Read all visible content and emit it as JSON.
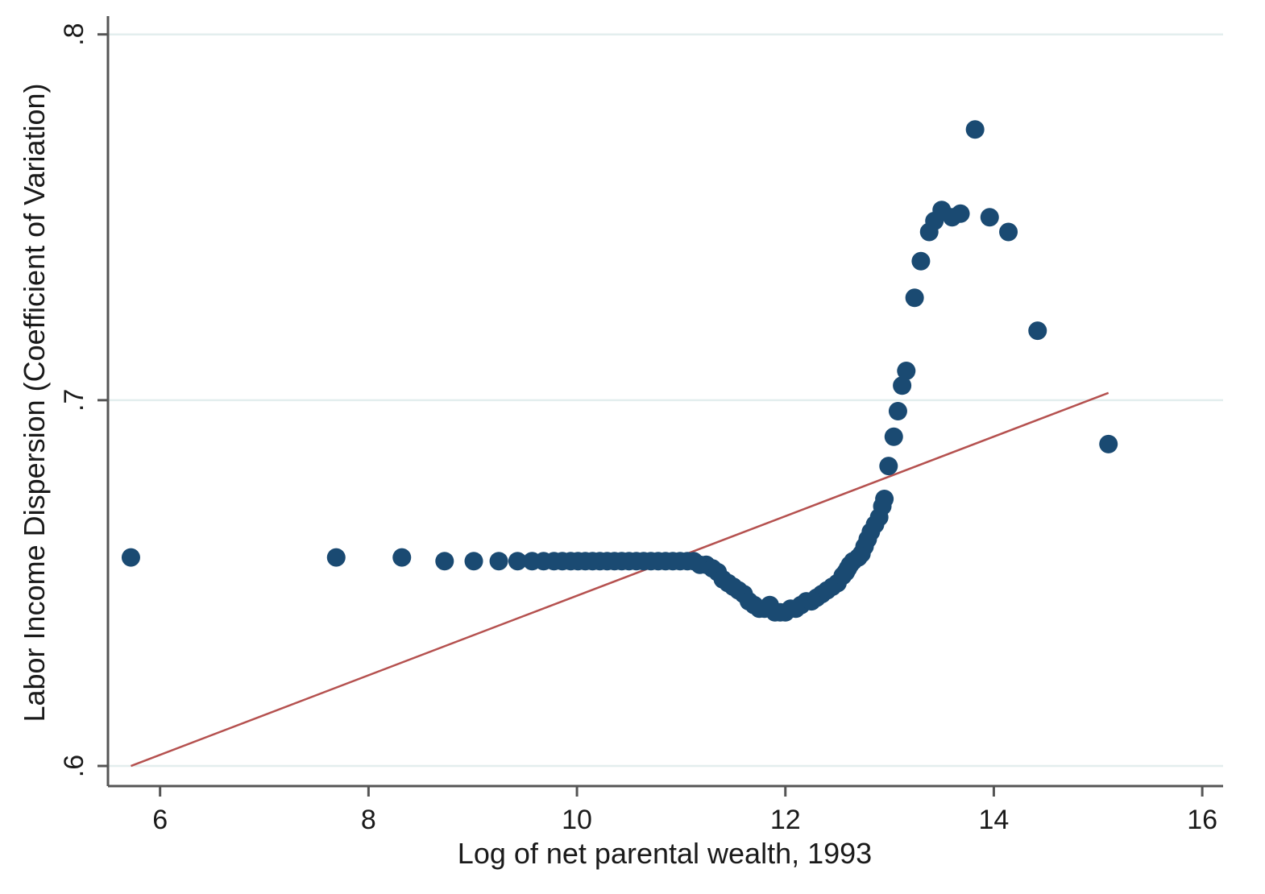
{
  "chart_data": {
    "type": "scatter",
    "xlabel": "Log of net parental wealth, 1993",
    "ylabel": "Labor Income Dispersion (Coefficient of Variation)",
    "xlim": [
      5.5,
      16.2
    ],
    "ylim": [
      0.5945,
      0.805
    ],
    "x_ticks": [
      6,
      8,
      10,
      12,
      14,
      16
    ],
    "x_tick_labels": [
      "6",
      "8",
      "10",
      "12",
      "14",
      "16"
    ],
    "y_ticks": [
      0.6,
      0.7,
      0.8
    ],
    "y_tick_labels": [
      ".6",
      ".7",
      ".8"
    ],
    "grid": "horizontal",
    "legend": "none",
    "colors": {
      "points": "#1a4a72",
      "fit_line": "#b5514f",
      "grid": "#e3eeee",
      "axis": "#555555"
    },
    "series": [
      {
        "kind": "points",
        "points": [
          [
            5.72,
            0.657
          ],
          [
            7.69,
            0.657
          ],
          [
            8.32,
            0.657
          ],
          [
            8.73,
            0.656
          ],
          [
            9.01,
            0.656
          ],
          [
            9.25,
            0.656
          ],
          [
            9.43,
            0.656
          ],
          [
            9.57,
            0.656
          ],
          [
            9.68,
            0.656
          ],
          [
            9.78,
            0.656
          ],
          [
            9.86,
            0.656
          ],
          [
            9.94,
            0.656
          ],
          [
            10.01,
            0.656
          ],
          [
            10.08,
            0.656
          ],
          [
            10.15,
            0.656
          ],
          [
            10.22,
            0.656
          ],
          [
            10.29,
            0.656
          ],
          [
            10.36,
            0.656
          ],
          [
            10.43,
            0.656
          ],
          [
            10.5,
            0.656
          ],
          [
            10.57,
            0.656
          ],
          [
            10.64,
            0.656
          ],
          [
            10.71,
            0.656
          ],
          [
            10.78,
            0.656
          ],
          [
            10.85,
            0.656
          ],
          [
            10.92,
            0.656
          ],
          [
            10.99,
            0.656
          ],
          [
            11.06,
            0.656
          ],
          [
            11.12,
            0.656
          ],
          [
            11.18,
            0.655
          ],
          [
            11.24,
            0.655
          ],
          [
            11.3,
            0.654
          ],
          [
            11.35,
            0.653
          ],
          [
            11.4,
            0.651
          ],
          [
            11.45,
            0.65
          ],
          [
            11.5,
            0.649
          ],
          [
            11.55,
            0.648
          ],
          [
            11.6,
            0.647
          ],
          [
            11.65,
            0.645
          ],
          [
            11.7,
            0.644
          ],
          [
            11.75,
            0.643
          ],
          [
            11.8,
            0.643
          ],
          [
            11.85,
            0.644
          ],
          [
            11.9,
            0.642
          ],
          [
            11.95,
            0.642
          ],
          [
            12.0,
            0.642
          ],
          [
            12.05,
            0.643
          ],
          [
            12.1,
            0.643
          ],
          [
            12.15,
            0.644
          ],
          [
            12.2,
            0.645
          ],
          [
            12.25,
            0.645
          ],
          [
            12.3,
            0.646
          ],
          [
            12.35,
            0.647
          ],
          [
            12.4,
            0.648
          ],
          [
            12.45,
            0.649
          ],
          [
            12.5,
            0.65
          ],
          [
            12.55,
            0.652
          ],
          [
            12.58,
            0.653
          ],
          [
            12.6,
            0.654
          ],
          [
            12.62,
            0.655
          ],
          [
            12.65,
            0.656
          ],
          [
            12.7,
            0.657
          ],
          [
            12.73,
            0.658
          ],
          [
            12.76,
            0.66
          ],
          [
            12.79,
            0.662
          ],
          [
            12.82,
            0.664
          ],
          [
            12.86,
            0.666
          ],
          [
            12.9,
            0.668
          ],
          [
            12.93,
            0.671
          ],
          [
            12.95,
            0.673
          ],
          [
            12.99,
            0.682
          ],
          [
            13.04,
            0.69
          ],
          [
            13.08,
            0.697
          ],
          [
            13.12,
            0.704
          ],
          [
            13.16,
            0.708
          ],
          [
            13.24,
            0.728
          ],
          [
            13.3,
            0.738
          ],
          [
            13.38,
            0.746
          ],
          [
            13.43,
            0.749
          ],
          [
            13.5,
            0.752
          ],
          [
            13.6,
            0.75
          ],
          [
            13.68,
            0.751
          ],
          [
            13.82,
            0.774
          ],
          [
            13.96,
            0.75
          ],
          [
            14.14,
            0.746
          ],
          [
            14.42,
            0.719
          ],
          [
            15.1,
            0.688
          ]
        ]
      },
      {
        "kind": "line",
        "points": [
          [
            5.72,
            0.6
          ],
          [
            15.1,
            0.702
          ]
        ]
      }
    ]
  }
}
